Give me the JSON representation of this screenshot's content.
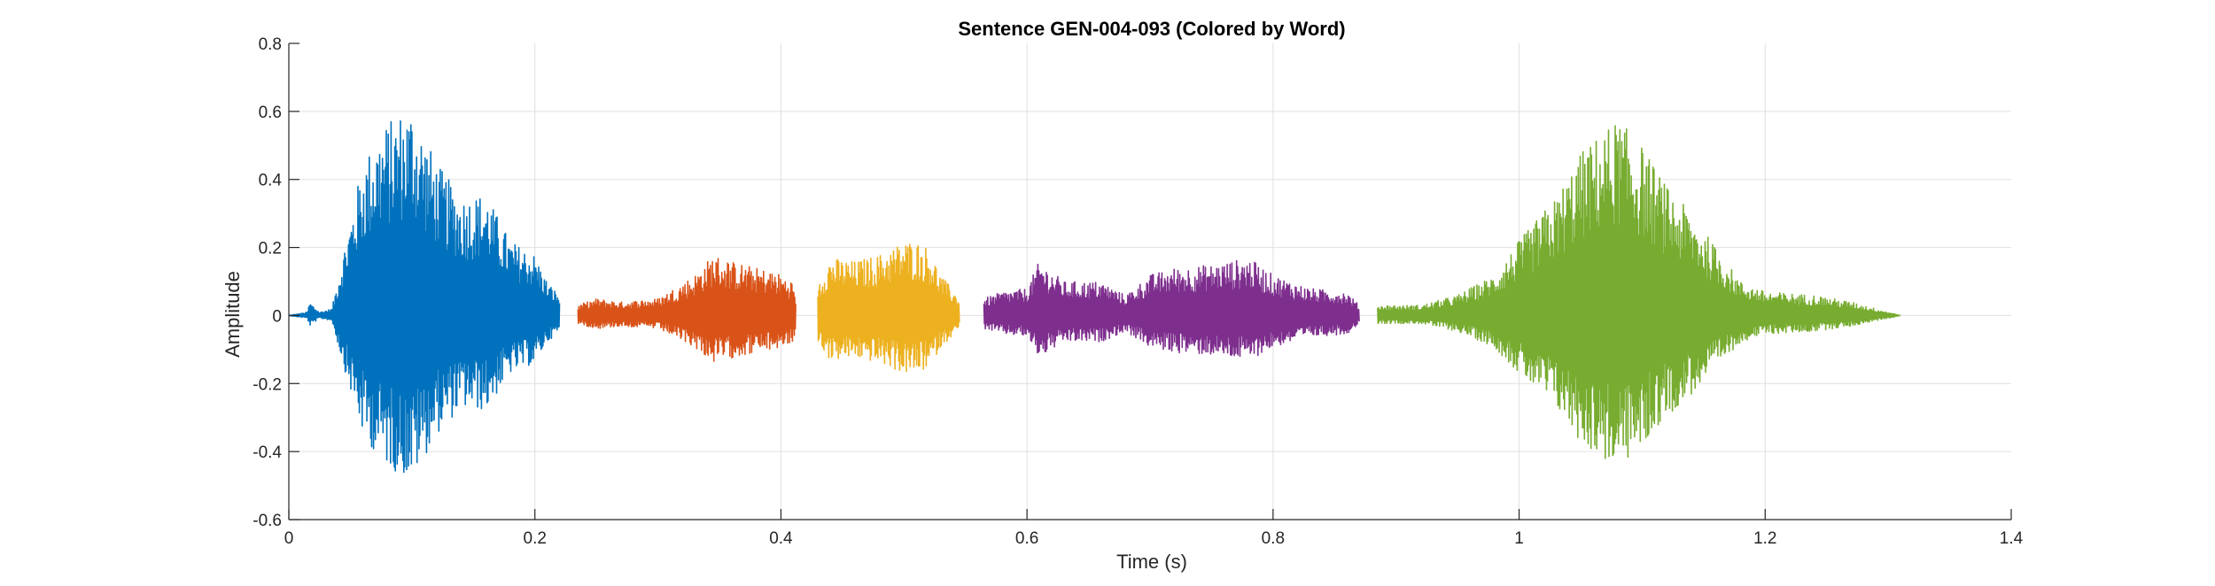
{
  "chart_data": {
    "type": "line",
    "title": "Sentence GEN-004-093 (Colored by Word)",
    "xlabel": "Time (s)",
    "ylabel": "Amplitude",
    "xlim": [
      0,
      1.4
    ],
    "ylim": [
      -0.6,
      0.8
    ],
    "xticks": [
      0,
      0.2,
      0.4,
      0.6,
      0.8,
      1.0,
      1.2,
      1.4
    ],
    "xtick_labels": [
      "0",
      "0.2",
      "0.4",
      "0.6",
      "0.8",
      "1",
      "1.2",
      "1.4"
    ],
    "yticks": [
      -0.6,
      -0.4,
      -0.2,
      0,
      0.2,
      0.4,
      0.6,
      0.8
    ],
    "ytick_labels": [
      "-0.6",
      "-0.4",
      "-0.2",
      "0",
      "0.2",
      "0.4",
      "0.6",
      "0.8"
    ],
    "grid": true,
    "series": [
      {
        "color": "#0072BD",
        "segments": [
          {
            "start": 0.0,
            "end": 0.22,
            "envelope": [
              [
                0.0,
                0.0
              ],
              [
                0.015,
                0.01
              ],
              [
                0.017,
                0.04
              ],
              [
                0.025,
                0.01
              ],
              [
                0.035,
                0.02
              ],
              [
                0.045,
                0.2
              ],
              [
                0.06,
                0.45
              ],
              [
                0.075,
                0.55
              ],
              [
                0.09,
                0.6
              ],
              [
                0.1,
                0.62
              ],
              [
                0.12,
                0.45
              ],
              [
                0.14,
                0.35
              ],
              [
                0.16,
                0.36
              ],
              [
                0.18,
                0.22
              ],
              [
                0.2,
                0.18
              ],
              [
                0.21,
                0.1
              ],
              [
                0.22,
                0.06
              ]
            ]
          }
        ]
      },
      {
        "color": "#D95319",
        "segments": [
          {
            "start": 0.235,
            "end": 0.412,
            "envelope": [
              [
                0.235,
                0.03
              ],
              [
                0.25,
                0.05
              ],
              [
                0.27,
                0.04
              ],
              [
                0.3,
                0.05
              ],
              [
                0.33,
                0.12
              ],
              [
                0.345,
                0.18
              ],
              [
                0.36,
                0.16
              ],
              [
                0.38,
                0.14
              ],
              [
                0.395,
                0.13
              ],
              [
                0.41,
                0.1
              ],
              [
                0.412,
                0.05
              ]
            ]
          }
        ]
      },
      {
        "color": "#EDB120",
        "segments": [
          {
            "start": 0.43,
            "end": 0.545,
            "envelope": [
              [
                0.43,
                0.1
              ],
              [
                0.44,
                0.17
              ],
              [
                0.46,
                0.16
              ],
              [
                0.48,
                0.18
              ],
              [
                0.5,
                0.22
              ],
              [
                0.51,
                0.22
              ],
              [
                0.52,
                0.2
              ],
              [
                0.53,
                0.12
              ],
              [
                0.545,
                0.05
              ]
            ]
          }
        ]
      },
      {
        "color": "#7E2F8E",
        "segments": [
          {
            "start": 0.565,
            "end": 0.87,
            "envelope": [
              [
                0.565,
                0.05
              ],
              [
                0.58,
                0.07
              ],
              [
                0.6,
                0.08
              ],
              [
                0.61,
                0.16
              ],
              [
                0.63,
                0.1
              ],
              [
                0.66,
                0.1
              ],
              [
                0.68,
                0.06
              ],
              [
                0.7,
                0.12
              ],
              [
                0.72,
                0.14
              ],
              [
                0.75,
                0.15
              ],
              [
                0.78,
                0.17
              ],
              [
                0.8,
                0.12
              ],
              [
                0.83,
                0.08
              ],
              [
                0.86,
                0.07
              ],
              [
                0.87,
                0.03
              ]
            ]
          }
        ]
      },
      {
        "color": "#77AC30",
        "segments": [
          {
            "start": 0.885,
            "end": 1.31,
            "envelope": [
              [
                0.885,
                0.03
              ],
              [
                0.92,
                0.03
              ],
              [
                0.95,
                0.06
              ],
              [
                0.98,
                0.12
              ],
              [
                1.0,
                0.22
              ],
              [
                1.03,
                0.35
              ],
              [
                1.05,
                0.48
              ],
              [
                1.07,
                0.55
              ],
              [
                1.08,
                0.58
              ],
              [
                1.1,
                0.5
              ],
              [
                1.12,
                0.38
              ],
              [
                1.14,
                0.3
              ],
              [
                1.16,
                0.2
              ],
              [
                1.18,
                0.1
              ],
              [
                1.2,
                0.07
              ],
              [
                1.24,
                0.06
              ],
              [
                1.27,
                0.04
              ],
              [
                1.3,
                0.01
              ],
              [
                1.31,
                0.0
              ]
            ]
          }
        ]
      }
    ]
  }
}
